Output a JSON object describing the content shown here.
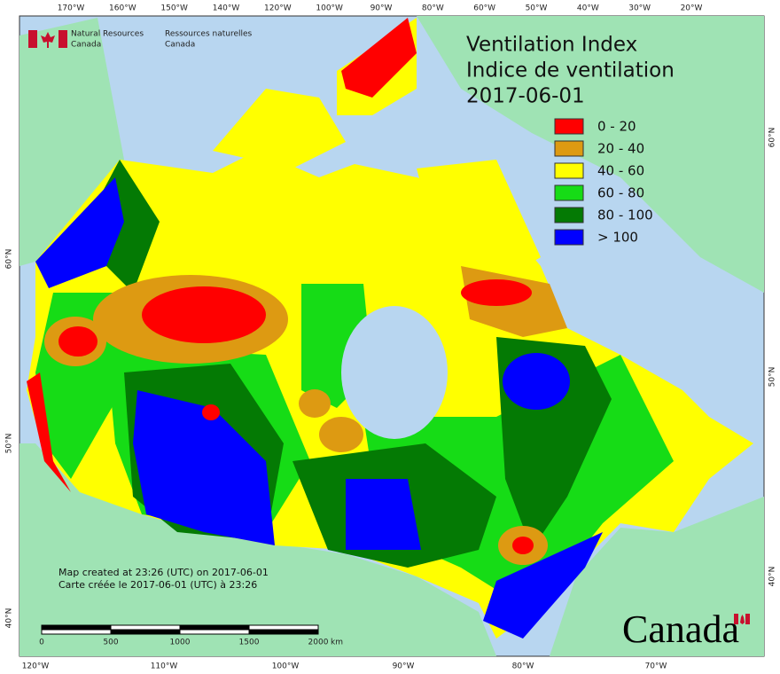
{
  "header": {
    "title_en": "Ventilation Index",
    "title_fr": "Indice de ventilation",
    "date": "2017-06-01"
  },
  "logo": {
    "en_line1": "Natural Resources",
    "en_line2": "Canada",
    "fr_line1": "Ressources naturelles",
    "fr_line2": "Canada"
  },
  "legend": {
    "items": [
      {
        "label": "0 - 20",
        "color": "#ff0000"
      },
      {
        "label": "20 - 40",
        "color": "#dd9a12"
      },
      {
        "label": "40 - 60",
        "color": "#ffff00"
      },
      {
        "label": "60 - 80",
        "color": "#16dc16"
      },
      {
        "label": "80 - 100",
        "color": "#047a04"
      },
      {
        "label": "> 100",
        "color": "#0000ff"
      }
    ]
  },
  "graticule": {
    "top": [
      "170°W",
      "160°W",
      "150°W",
      "140°W",
      "120°W",
      "100°W",
      "90°W",
      "80°W",
      "60°W",
      "50°W",
      "40°W",
      "30°W",
      "20°W"
    ],
    "bottom": [
      "120°W",
      "110°W",
      "100°W",
      "90°W",
      "80°W",
      "70°W"
    ],
    "left": [
      "60°N",
      "50°N",
      "40°N"
    ],
    "right": [
      "60°N",
      "50°N",
      "40°N"
    ]
  },
  "notes": {
    "line_en": "Map created at 23:26 (UTC) on 2017-06-01",
    "line_fr": "Carte créée le 2017-06-01 (UTC) à 23:26"
  },
  "scale_bar": {
    "labels": [
      "0",
      "500",
      "1000",
      "1500",
      "2000"
    ],
    "unit": "km"
  },
  "wordmark": "Canada"
}
